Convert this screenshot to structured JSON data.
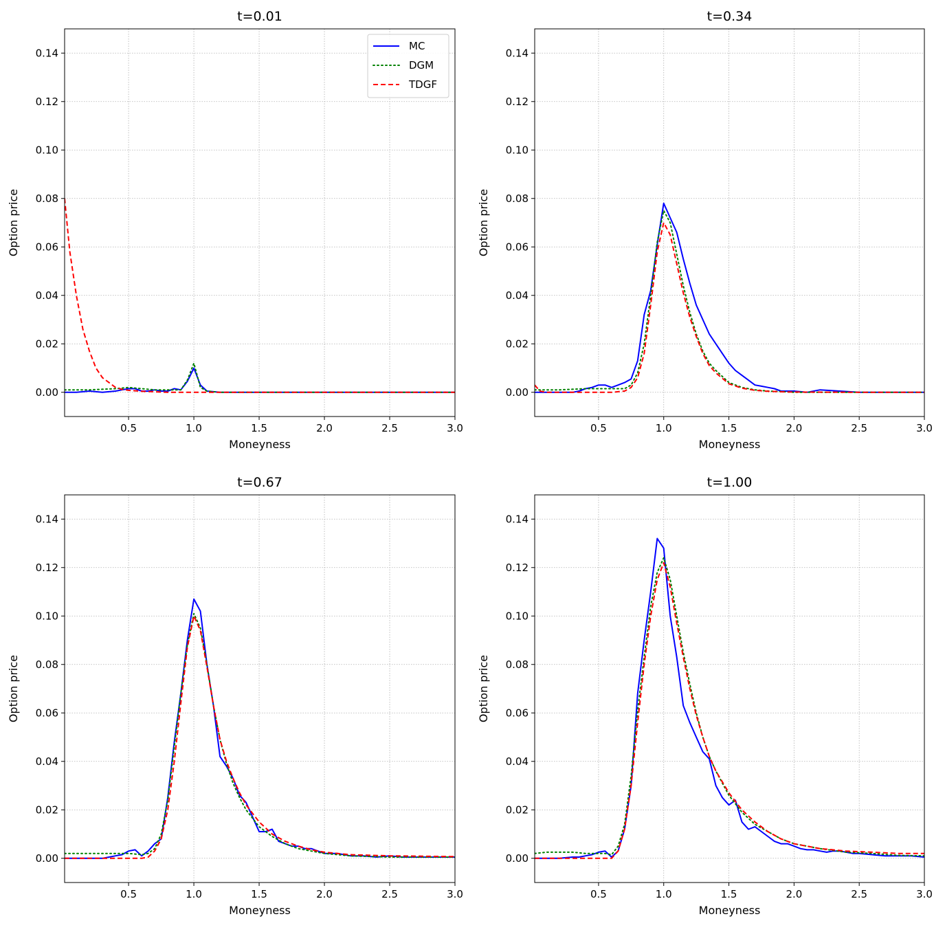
{
  "chart_data": [
    {
      "type": "line",
      "title": "t=0.01",
      "xlabel": "Moneyness",
      "ylabel": "Option price",
      "xlim": [
        0.01,
        3.0
      ],
      "ylim": [
        -0.01,
        0.15
      ],
      "xticks": [
        0.5,
        1.0,
        1.5,
        2.0,
        2.5,
        3.0
      ],
      "xtick_labels": [
        "0.5",
        "1.0",
        "1.5",
        "2.0",
        "2.5",
        "3.0"
      ],
      "yticks": [
        0.0,
        0.02,
        0.04,
        0.06,
        0.08,
        0.1,
        0.12,
        0.14
      ],
      "ytick_labels": [
        "0.00",
        "0.02",
        "0.04",
        "0.06",
        "0.08",
        "0.10",
        "0.12",
        "0.14"
      ],
      "grid": true,
      "legend": true,
      "legend_position": "top-right",
      "series": [
        {
          "name": "MC",
          "color": "#0000ff",
          "dash": "solid",
          "x": [
            0.01,
            0.1,
            0.2,
            0.3,
            0.4,
            0.45,
            0.5,
            0.55,
            0.6,
            0.65,
            0.7,
            0.75,
            0.8,
            0.85,
            0.9,
            0.95,
            1.0,
            1.05,
            1.1,
            1.2,
            1.5,
            2.0,
            2.5,
            3.0
          ],
          "y": [
            0.0,
            0.0,
            0.0005,
            0.0,
            0.0005,
            0.001,
            0.0015,
            0.0015,
            0.0005,
            0.0005,
            0.001,
            0.0005,
            0.0005,
            0.0015,
            0.001,
            0.0045,
            0.01,
            0.003,
            0.0005,
            0.0,
            0.0,
            0.0,
            0.0,
            0.0
          ]
        },
        {
          "name": "DGM",
          "color": "#008000",
          "dash": "dotted",
          "x": [
            0.01,
            0.2,
            0.4,
            0.5,
            0.6,
            0.7,
            0.8,
            0.85,
            0.9,
            0.95,
            1.0,
            1.05,
            1.1,
            1.2,
            1.5,
            2.0,
            2.5,
            3.0
          ],
          "y": [
            0.001,
            0.001,
            0.0015,
            0.002,
            0.0015,
            0.001,
            0.001,
            0.001,
            0.001,
            0.005,
            0.012,
            0.002,
            0.0005,
            0.0,
            0.0,
            0.0,
            0.0,
            0.0
          ]
        },
        {
          "name": "TDGF",
          "color": "#ff0000",
          "dash": "dashed",
          "x": [
            0.01,
            0.05,
            0.1,
            0.15,
            0.2,
            0.25,
            0.3,
            0.35,
            0.4,
            0.45,
            0.5,
            0.6,
            0.7,
            0.8,
            1.0,
            1.5,
            2.0,
            2.5,
            3.0
          ],
          "y": [
            0.08,
            0.058,
            0.04,
            0.026,
            0.017,
            0.01,
            0.006,
            0.004,
            0.002,
            0.0012,
            0.0008,
            0.0004,
            0.0002,
            0.0,
            0.0,
            0.0,
            0.0,
            0.0,
            0.0
          ]
        }
      ]
    },
    {
      "type": "line",
      "title": "t=0.34",
      "xlabel": "Moneyness",
      "ylabel": "Option price",
      "xlim": [
        0.01,
        3.0
      ],
      "ylim": [
        -0.01,
        0.15
      ],
      "xticks": [
        0.5,
        1.0,
        1.5,
        2.0,
        2.5,
        3.0
      ],
      "xtick_labels": [
        "0.5",
        "1.0",
        "1.5",
        "2.0",
        "2.5",
        "3.0"
      ],
      "yticks": [
        0.0,
        0.02,
        0.04,
        0.06,
        0.08,
        0.1,
        0.12,
        0.14
      ],
      "ytick_labels": [
        "0.00",
        "0.02",
        "0.04",
        "0.06",
        "0.08",
        "0.10",
        "0.12",
        "0.14"
      ],
      "grid": true,
      "legend": false,
      "series": [
        {
          "name": "MC",
          "color": "#0000ff",
          "dash": "solid",
          "x": [
            0.01,
            0.1,
            0.2,
            0.3,
            0.35,
            0.4,
            0.45,
            0.5,
            0.55,
            0.6,
            0.65,
            0.7,
            0.75,
            0.8,
            0.85,
            0.9,
            0.95,
            1.0,
            1.05,
            1.1,
            1.15,
            1.2,
            1.25,
            1.3,
            1.35,
            1.4,
            1.45,
            1.5,
            1.55,
            1.6,
            1.65,
            1.7,
            1.75,
            1.8,
            1.85,
            1.9,
            1.95,
            2.0,
            2.1,
            2.2,
            2.5,
            3.0
          ],
          "y": [
            0.0,
            0.0,
            0.0,
            0.0,
            0.0005,
            0.0015,
            0.002,
            0.003,
            0.003,
            0.002,
            0.003,
            0.004,
            0.0055,
            0.013,
            0.032,
            0.042,
            0.061,
            0.078,
            0.072,
            0.066,
            0.055,
            0.045,
            0.036,
            0.03,
            0.024,
            0.02,
            0.016,
            0.012,
            0.009,
            0.007,
            0.005,
            0.003,
            0.0025,
            0.002,
            0.0015,
            0.0005,
            0.0005,
            0.0005,
            0.0,
            0.001,
            0.0,
            0.0
          ]
        },
        {
          "name": "DGM",
          "color": "#008000",
          "dash": "dotted",
          "x": [
            0.01,
            0.2,
            0.4,
            0.5,
            0.6,
            0.7,
            0.75,
            0.8,
            0.85,
            0.9,
            0.95,
            1.0,
            1.05,
            1.1,
            1.15,
            1.2,
            1.25,
            1.3,
            1.35,
            1.4,
            1.5,
            1.6,
            1.7,
            1.8,
            1.9,
            2.0,
            2.5,
            3.0
          ],
          "y": [
            0.001,
            0.001,
            0.0015,
            0.0015,
            0.0015,
            0.0015,
            0.003,
            0.008,
            0.02,
            0.04,
            0.062,
            0.075,
            0.07,
            0.057,
            0.044,
            0.033,
            0.024,
            0.017,
            0.012,
            0.009,
            0.004,
            0.002,
            0.001,
            0.0005,
            0.0003,
            0.0,
            0.0,
            0.0
          ]
        },
        {
          "name": "TDGF",
          "color": "#ff0000",
          "dash": "dashed",
          "x": [
            0.01,
            0.05,
            0.1,
            0.3,
            0.5,
            0.6,
            0.7,
            0.75,
            0.8,
            0.85,
            0.9,
            0.95,
            1.0,
            1.05,
            1.1,
            1.15,
            1.2,
            1.25,
            1.3,
            1.35,
            1.4,
            1.5,
            1.6,
            1.7,
            1.8,
            1.9,
            2.0,
            2.5,
            3.0
          ],
          "y": [
            0.003,
            0.0005,
            0.0,
            0.0,
            0.0,
            0.0,
            0.0005,
            0.002,
            0.006,
            0.016,
            0.036,
            0.058,
            0.07,
            0.065,
            0.053,
            0.041,
            0.031,
            0.023,
            0.016,
            0.011,
            0.008,
            0.0035,
            0.0017,
            0.0008,
            0.0004,
            0.0002,
            0.0001,
            0.0,
            0.0
          ]
        }
      ]
    },
    {
      "type": "line",
      "title": "t=0.67",
      "xlabel": "Moneyness",
      "ylabel": "Option price",
      "xlim": [
        0.01,
        3.0
      ],
      "ylim": [
        -0.01,
        0.15
      ],
      "xticks": [
        0.5,
        1.0,
        1.5,
        2.0,
        2.5,
        3.0
      ],
      "xtick_labels": [
        "0.5",
        "1.0",
        "1.5",
        "2.0",
        "2.5",
        "3.0"
      ],
      "yticks": [
        0.0,
        0.02,
        0.04,
        0.06,
        0.08,
        0.1,
        0.12,
        0.14
      ],
      "ytick_labels": [
        "0.00",
        "0.02",
        "0.04",
        "0.06",
        "0.08",
        "0.10",
        "0.12",
        "0.14"
      ],
      "grid": true,
      "legend": false,
      "series": [
        {
          "name": "MC",
          "color": "#0000ff",
          "dash": "solid",
          "x": [
            0.01,
            0.1,
            0.2,
            0.3,
            0.35,
            0.4,
            0.45,
            0.5,
            0.55,
            0.6,
            0.65,
            0.7,
            0.75,
            0.8,
            0.85,
            0.9,
            0.95,
            1.0,
            1.05,
            1.1,
            1.15,
            1.2,
            1.25,
            1.3,
            1.35,
            1.4,
            1.45,
            1.5,
            1.55,
            1.6,
            1.65,
            1.7,
            1.75,
            1.8,
            1.85,
            1.9,
            1.95,
            2.0,
            2.1,
            2.2,
            2.3,
            2.4,
            2.5,
            2.6,
            2.7,
            2.8,
            2.9,
            3.0
          ],
          "y": [
            0.0,
            0.0,
            0.0,
            0.0,
            0.0005,
            0.001,
            0.0015,
            0.003,
            0.0035,
            0.001,
            0.003,
            0.006,
            0.008,
            0.025,
            0.048,
            0.068,
            0.09,
            0.107,
            0.102,
            0.08,
            0.063,
            0.042,
            0.038,
            0.033,
            0.026,
            0.023,
            0.017,
            0.011,
            0.011,
            0.012,
            0.007,
            0.006,
            0.005,
            0.005,
            0.004,
            0.004,
            0.003,
            0.002,
            0.002,
            0.001,
            0.001,
            0.0005,
            0.001,
            0.0005,
            0.0005,
            0.0005,
            0.0005,
            0.0005
          ]
        },
        {
          "name": "DGM",
          "color": "#008000",
          "dash": "dotted",
          "x": [
            0.01,
            0.2,
            0.4,
            0.5,
            0.6,
            0.65,
            0.7,
            0.75,
            0.8,
            0.85,
            0.9,
            0.95,
            1.0,
            1.05,
            1.1,
            1.15,
            1.2,
            1.25,
            1.3,
            1.35,
            1.4,
            1.5,
            1.6,
            1.7,
            1.8,
            1.9,
            2.0,
            2.2,
            2.5,
            3.0
          ],
          "y": [
            0.002,
            0.002,
            0.002,
            0.002,
            0.0015,
            0.002,
            0.004,
            0.01,
            0.024,
            0.046,
            0.068,
            0.088,
            0.101,
            0.095,
            0.08,
            0.063,
            0.049,
            0.039,
            0.031,
            0.025,
            0.02,
            0.013,
            0.009,
            0.006,
            0.004,
            0.003,
            0.002,
            0.001,
            0.0005,
            0.0005
          ]
        },
        {
          "name": "TDGF",
          "color": "#ff0000",
          "dash": "dashed",
          "x": [
            0.01,
            0.2,
            0.4,
            0.5,
            0.6,
            0.65,
            0.7,
            0.75,
            0.8,
            0.85,
            0.9,
            0.95,
            1.0,
            1.05,
            1.1,
            1.15,
            1.2,
            1.25,
            1.3,
            1.35,
            1.4,
            1.5,
            1.6,
            1.7,
            1.8,
            1.9,
            2.0,
            2.2,
            2.5,
            3.0
          ],
          "y": [
            0.0,
            0.0,
            0.0,
            0.0,
            0.0,
            0.0005,
            0.003,
            0.008,
            0.02,
            0.04,
            0.064,
            0.087,
            0.1,
            0.094,
            0.079,
            0.063,
            0.049,
            0.04,
            0.033,
            0.027,
            0.022,
            0.015,
            0.01,
            0.007,
            0.005,
            0.0035,
            0.0025,
            0.0015,
            0.001,
            0.0007
          ]
        }
      ]
    },
    {
      "type": "line",
      "title": "t=1.00",
      "xlabel": "Moneyness",
      "ylabel": "Option price",
      "xlim": [
        0.01,
        3.0
      ],
      "ylim": [
        -0.01,
        0.15
      ],
      "xticks": [
        0.5,
        1.0,
        1.5,
        2.0,
        2.5,
        3.0
      ],
      "xtick_labels": [
        "0.5",
        "1.0",
        "1.5",
        "2.0",
        "2.5",
        "3.0"
      ],
      "yticks": [
        0.0,
        0.02,
        0.04,
        0.06,
        0.08,
        0.1,
        0.12,
        0.14
      ],
      "ytick_labels": [
        "0.00",
        "0.02",
        "0.04",
        "0.06",
        "0.08",
        "0.10",
        "0.12",
        "0.14"
      ],
      "grid": true,
      "legend": false,
      "series": [
        {
          "name": "MC",
          "color": "#0000ff",
          "dash": "solid",
          "x": [
            0.01,
            0.1,
            0.2,
            0.3,
            0.35,
            0.4,
            0.45,
            0.5,
            0.55,
            0.6,
            0.65,
            0.7,
            0.75,
            0.8,
            0.85,
            0.9,
            0.95,
            1.0,
            1.05,
            1.1,
            1.15,
            1.2,
            1.25,
            1.3,
            1.35,
            1.4,
            1.45,
            1.5,
            1.55,
            1.6,
            1.65,
            1.7,
            1.75,
            1.8,
            1.85,
            1.9,
            1.95,
            2.0,
            2.05,
            2.1,
            2.15,
            2.2,
            2.25,
            2.3,
            2.35,
            2.4,
            2.45,
            2.5,
            2.6,
            2.7,
            2.8,
            2.9,
            3.0
          ],
          "y": [
            0.0,
            0.0,
            0.0,
            0.0005,
            0.0005,
            0.001,
            0.0015,
            0.0025,
            0.003,
            0.0005,
            0.003,
            0.012,
            0.03,
            0.068,
            0.09,
            0.11,
            0.132,
            0.128,
            0.1,
            0.083,
            0.063,
            0.056,
            0.05,
            0.044,
            0.041,
            0.03,
            0.025,
            0.022,
            0.024,
            0.015,
            0.012,
            0.013,
            0.011,
            0.009,
            0.007,
            0.006,
            0.006,
            0.005,
            0.004,
            0.0035,
            0.0035,
            0.003,
            0.0025,
            0.003,
            0.003,
            0.0025,
            0.002,
            0.002,
            0.0015,
            0.001,
            0.001,
            0.001,
            0.0005
          ]
        },
        {
          "name": "DGM",
          "color": "#008000",
          "dash": "dotted",
          "x": [
            0.01,
            0.1,
            0.2,
            0.3,
            0.4,
            0.5,
            0.55,
            0.6,
            0.65,
            0.7,
            0.75,
            0.8,
            0.85,
            0.9,
            0.95,
            1.0,
            1.05,
            1.1,
            1.15,
            1.2,
            1.25,
            1.3,
            1.35,
            1.4,
            1.5,
            1.6,
            1.7,
            1.8,
            1.9,
            2.0,
            2.2,
            2.4,
            2.6,
            2.8,
            3.0
          ],
          "y": [
            0.002,
            0.0025,
            0.0025,
            0.0025,
            0.002,
            0.002,
            0.002,
            0.0015,
            0.005,
            0.014,
            0.034,
            0.061,
            0.083,
            0.104,
            0.118,
            0.124,
            0.115,
            0.1,
            0.085,
            0.072,
            0.06,
            0.05,
            0.042,
            0.036,
            0.026,
            0.019,
            0.014,
            0.011,
            0.008,
            0.006,
            0.004,
            0.0025,
            0.002,
            0.0012,
            0.001
          ]
        },
        {
          "name": "TDGF",
          "color": "#ff0000",
          "dash": "dashed",
          "x": [
            0.01,
            0.2,
            0.4,
            0.5,
            0.6,
            0.65,
            0.7,
            0.75,
            0.8,
            0.85,
            0.9,
            0.95,
            1.0,
            1.05,
            1.1,
            1.15,
            1.2,
            1.25,
            1.3,
            1.35,
            1.4,
            1.5,
            1.6,
            1.7,
            1.8,
            1.9,
            2.0,
            2.2,
            2.4,
            2.6,
            2.8,
            3.0
          ],
          "y": [
            0.0,
            0.0,
            0.0,
            0.0,
            0.0,
            0.003,
            0.012,
            0.03,
            0.056,
            0.08,
            0.1,
            0.115,
            0.122,
            0.112,
            0.097,
            0.083,
            0.07,
            0.059,
            0.05,
            0.042,
            0.036,
            0.027,
            0.02,
            0.015,
            0.011,
            0.008,
            0.006,
            0.004,
            0.003,
            0.0025,
            0.002,
            0.002
          ]
        }
      ]
    }
  ]
}
